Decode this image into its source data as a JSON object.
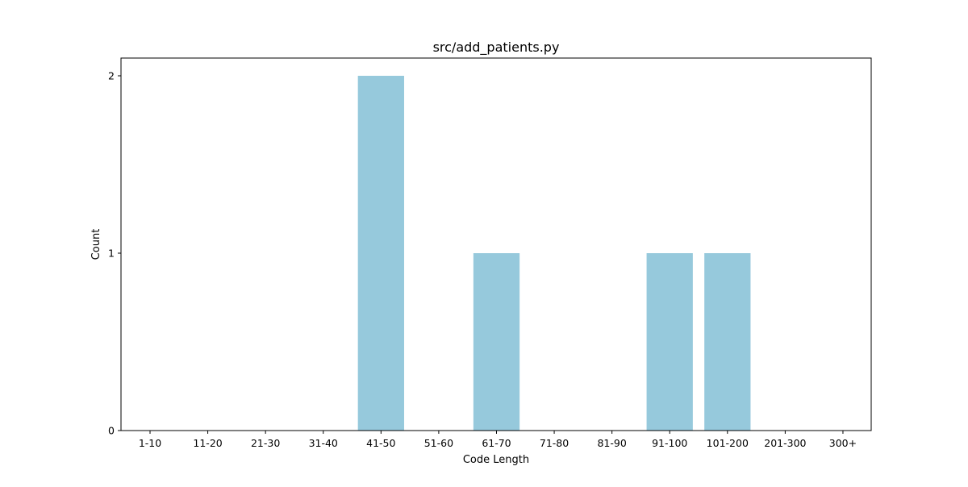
{
  "chart_data": {
    "type": "bar",
    "title": "src/add_patients.py",
    "xlabel": "Code Length",
    "ylabel": "Count",
    "categories": [
      "1-10",
      "11-20",
      "21-30",
      "31-40",
      "41-50",
      "51-60",
      "61-70",
      "71-80",
      "81-90",
      "91-100",
      "101-200",
      "201-300",
      "300+"
    ],
    "values": [
      0,
      0,
      0,
      0,
      2,
      0,
      1,
      0,
      0,
      1,
      1,
      0,
      0
    ],
    "yticks": [
      0,
      1,
      2
    ],
    "ylim": [
      0,
      2.1
    ],
    "bar_color": "#96c9dc",
    "grid": false,
    "legend": false
  }
}
